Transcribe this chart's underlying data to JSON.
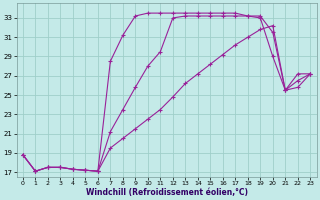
{
  "xlabel": "Windchill (Refroidissement éolien,°C)",
  "bg_color": "#c4eae8",
  "grid_color": "#9fcfca",
  "line_color": "#992299",
  "xlim_min": -0.5,
  "xlim_max": 23.5,
  "ylim_min": 16.5,
  "ylim_max": 34.5,
  "xticks": [
    0,
    1,
    2,
    3,
    4,
    5,
    6,
    7,
    8,
    9,
    10,
    11,
    12,
    13,
    14,
    15,
    16,
    17,
    18,
    19,
    20,
    21,
    22,
    23
  ],
  "yticks": [
    17,
    19,
    21,
    23,
    25,
    27,
    29,
    31,
    33
  ],
  "series": [
    [
      18.8,
      17.1,
      17.5,
      17.5,
      17.3,
      17.2,
      17.1,
      28.5,
      31.2,
      33.2,
      33.5,
      33.5,
      33.5,
      33.5,
      33.5,
      33.5,
      33.5,
      33.5,
      33.2,
      33.0,
      29.0,
      25.5,
      27.2,
      27.2
    ],
    [
      18.8,
      17.1,
      17.5,
      17.5,
      17.3,
      17.2,
      17.1,
      21.2,
      23.5,
      25.8,
      28.0,
      29.5,
      33.0,
      33.2,
      33.2,
      33.2,
      33.2,
      33.2,
      33.2,
      33.2,
      31.5,
      25.5,
      25.8,
      27.2
    ],
    [
      18.8,
      17.1,
      17.5,
      17.5,
      17.3,
      17.2,
      17.1,
      19.5,
      20.5,
      21.5,
      22.5,
      23.5,
      24.8,
      26.2,
      27.2,
      28.2,
      29.2,
      30.2,
      31.0,
      31.8,
      32.2,
      25.5,
      26.5,
      27.2
    ]
  ]
}
